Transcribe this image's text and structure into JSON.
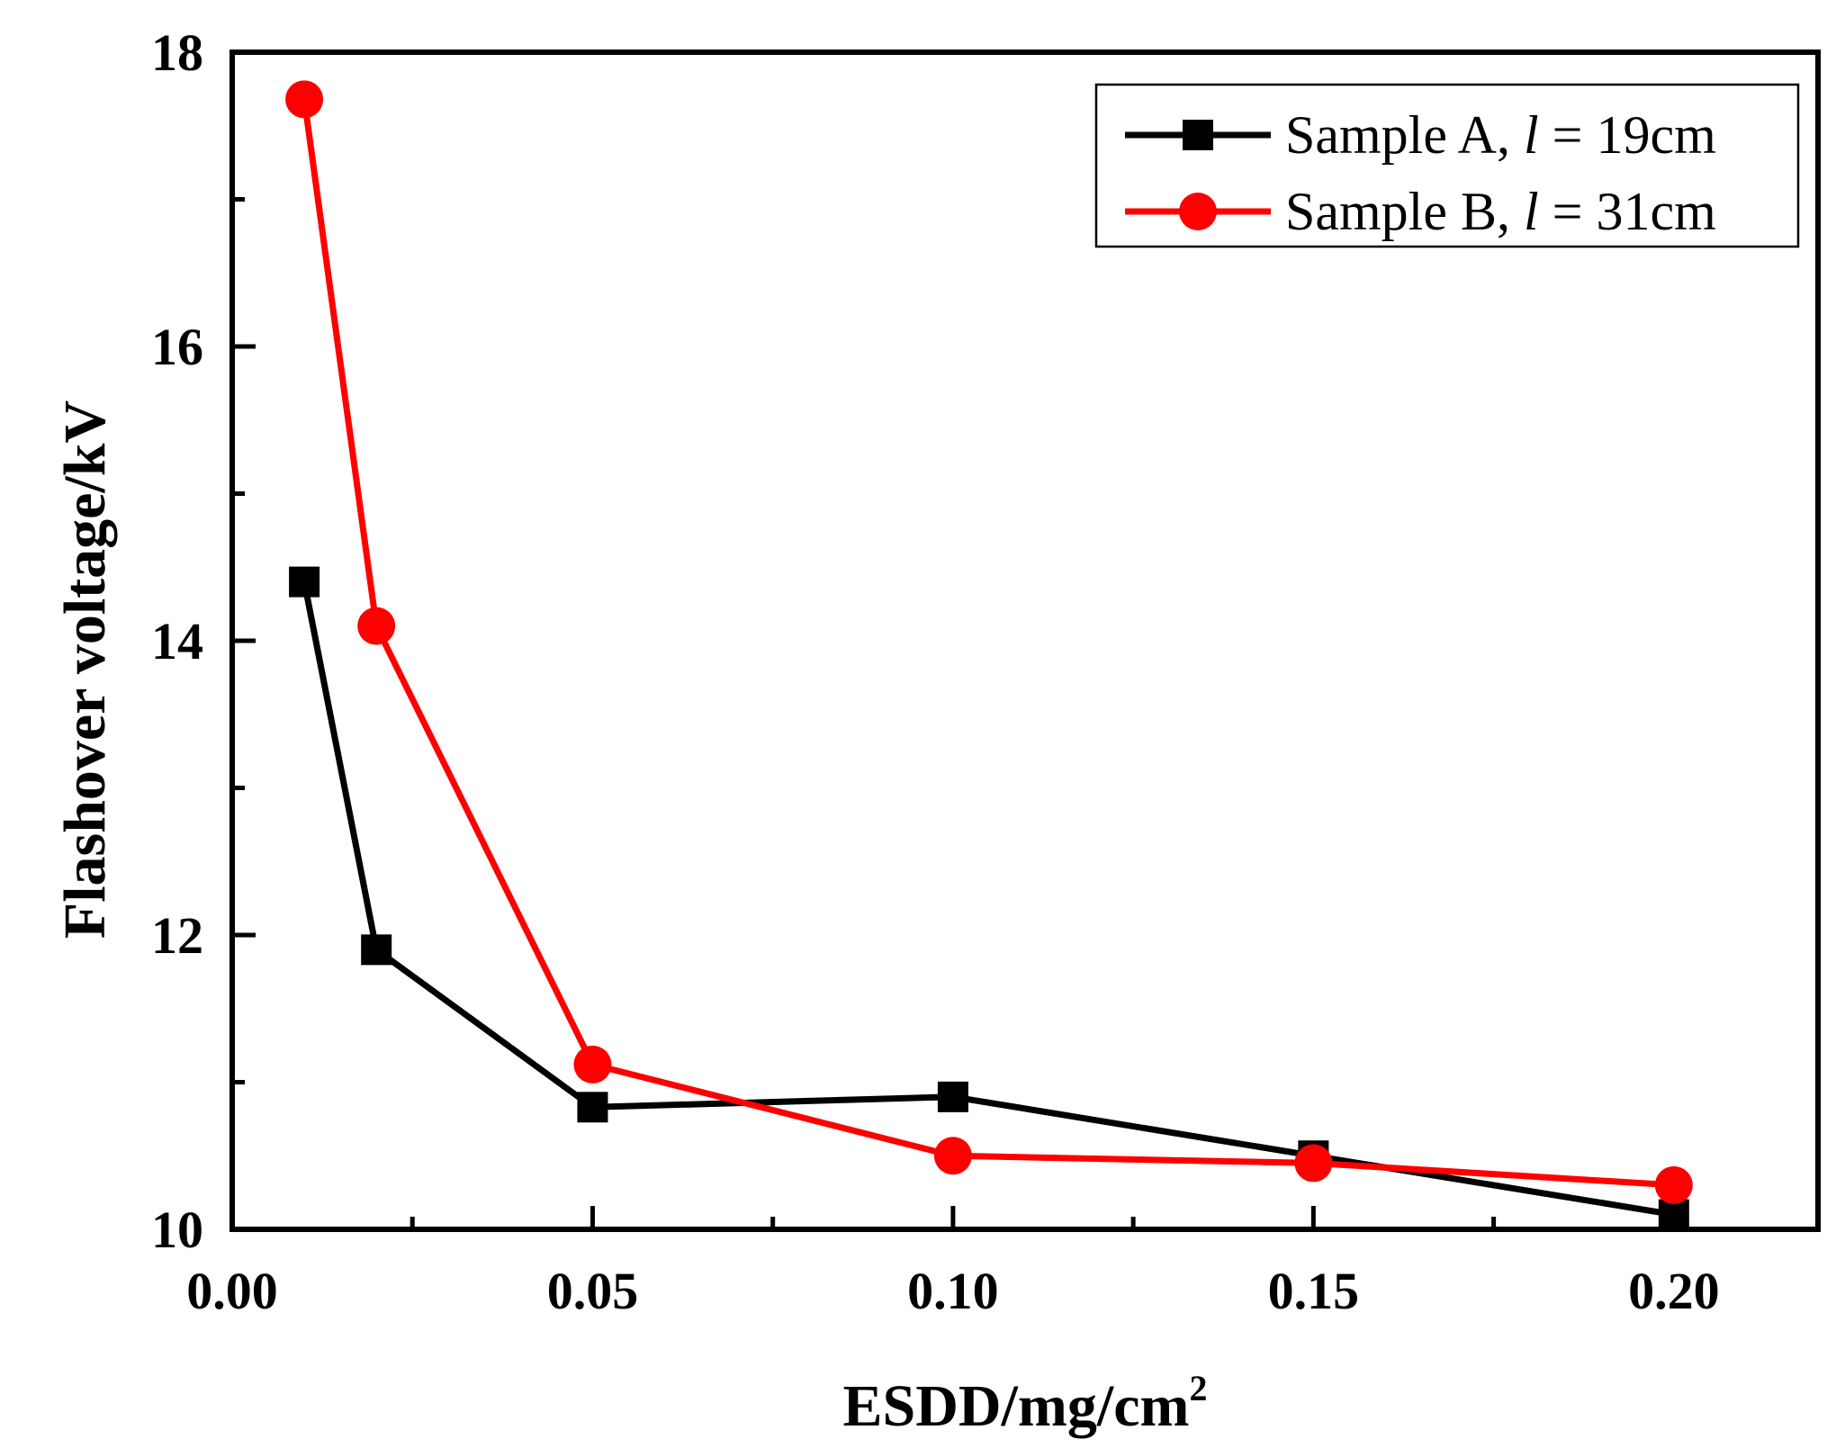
{
  "chart_data": {
    "type": "line",
    "title": "",
    "xlabel": "ESDD/mg/cm",
    "xlabel_superscript": "2",
    "ylabel": "Flashover voltage/kV",
    "xlim": [
      0.0,
      0.22
    ],
    "ylim": [
      10,
      18
    ],
    "x_ticks": [
      0.0,
      0.05,
      0.1,
      0.15,
      0.2
    ],
    "x_tick_labels": [
      "0.00",
      "0.05",
      "0.10",
      "0.15",
      "0.20"
    ],
    "x_minor_ticks": [
      0.025,
      0.075,
      0.125,
      0.175
    ],
    "y_ticks": [
      10,
      12,
      14,
      16,
      18
    ],
    "y_tick_labels": [
      "10",
      "12",
      "14",
      "16",
      "18"
    ],
    "y_minor_ticks": [
      11,
      13,
      15,
      17
    ],
    "grid": false,
    "legend_position": "top-right",
    "series": [
      {
        "name": "Sample A, l = 19cm",
        "legend_prefix": "Sample A, ",
        "legend_italic": "l",
        "legend_suffix": " = 19cm",
        "marker": "square",
        "color": "#000000",
        "x": [
          0.01,
          0.02,
          0.05,
          0.1,
          0.15,
          0.2
        ],
        "y": [
          14.4,
          11.9,
          10.83,
          10.9,
          10.5,
          10.1
        ]
      },
      {
        "name": "Sample B, l = 31cm",
        "legend_prefix": "Sample B, ",
        "legend_italic": "l",
        "legend_suffix": " = 31cm",
        "marker": "circle",
        "color": "#ff0000",
        "x": [
          0.01,
          0.02,
          0.05,
          0.1,
          0.15,
          0.2
        ],
        "y": [
          17.68,
          14.1,
          11.12,
          10.5,
          10.45,
          10.3
        ]
      }
    ]
  }
}
